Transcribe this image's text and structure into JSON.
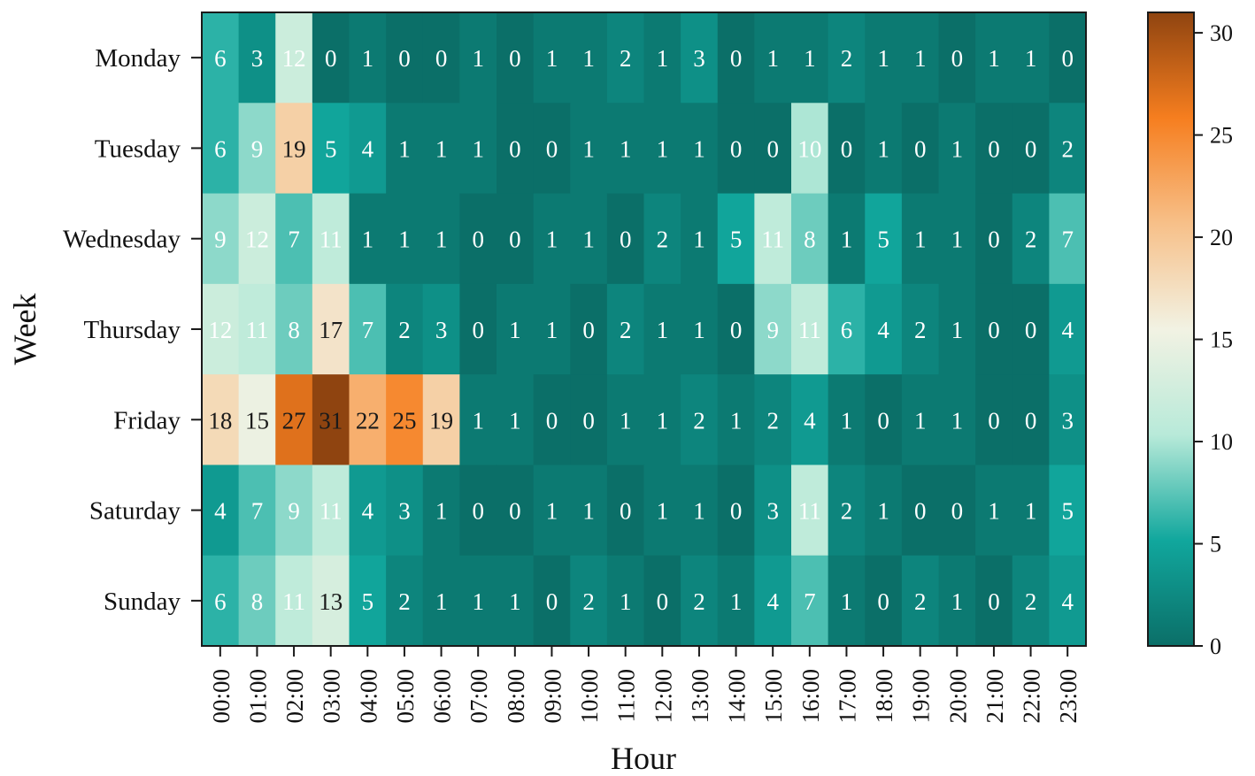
{
  "chart_data": {
    "type": "heatmap",
    "title": "",
    "xlabel": "Hour",
    "ylabel": "Week",
    "x": [
      "00:00",
      "01:00",
      "02:00",
      "03:00",
      "04:00",
      "05:00",
      "06:00",
      "07:00",
      "08:00",
      "09:00",
      "10:00",
      "11:00",
      "12:00",
      "13:00",
      "14:00",
      "15:00",
      "16:00",
      "17:00",
      "18:00",
      "19:00",
      "20:00",
      "21:00",
      "22:00",
      "23:00"
    ],
    "y": [
      "Monday",
      "Tuesday",
      "Wednesday",
      "Thursday",
      "Friday",
      "Saturday",
      "Sunday"
    ],
    "values": [
      [
        6,
        3,
        12,
        0,
        1,
        0,
        0,
        1,
        0,
        1,
        1,
        2,
        1,
        3,
        0,
        1,
        1,
        2,
        1,
        1,
        0,
        1,
        1,
        0
      ],
      [
        6,
        9,
        19,
        5,
        4,
        1,
        1,
        1,
        0,
        0,
        1,
        1,
        1,
        1,
        0,
        0,
        10,
        0,
        1,
        0,
        1,
        0,
        0,
        2
      ],
      [
        9,
        12,
        7,
        11,
        1,
        1,
        1,
        0,
        0,
        1,
        1,
        0,
        2,
        1,
        5,
        11,
        8,
        1,
        5,
        1,
        1,
        0,
        2,
        7
      ],
      [
        12,
        11,
        8,
        17,
        7,
        2,
        3,
        0,
        1,
        1,
        0,
        2,
        1,
        1,
        0,
        9,
        11,
        6,
        4,
        2,
        1,
        0,
        0,
        4
      ],
      [
        18,
        15,
        27,
        31,
        22,
        25,
        19,
        1,
        1,
        0,
        0,
        1,
        1,
        2,
        1,
        2,
        4,
        1,
        0,
        1,
        1,
        0,
        0,
        3
      ],
      [
        4,
        7,
        9,
        11,
        4,
        3,
        1,
        0,
        0,
        1,
        1,
        0,
        1,
        1,
        0,
        3,
        11,
        2,
        1,
        0,
        0,
        1,
        1,
        5
      ],
      [
        6,
        8,
        11,
        13,
        5,
        2,
        1,
        1,
        1,
        0,
        2,
        1,
        0,
        2,
        1,
        4,
        7,
        1,
        0,
        2,
        1,
        0,
        2,
        4
      ]
    ],
    "colorbar": {
      "range": [
        0,
        31
      ],
      "ticks": [
        "0",
        "5",
        "10",
        "15",
        "20",
        "25",
        "30"
      ],
      "tick_values": [
        0,
        5,
        10,
        15,
        20,
        25,
        30
      ],
      "colormap": [
        "#0b6f68",
        "#11a79d",
        "#b8ead9",
        "#f2f2e3",
        "#f7c089",
        "#f67e1f",
        "#8f4410"
      ]
    },
    "grid": false,
    "legend": "colorbar-right"
  }
}
